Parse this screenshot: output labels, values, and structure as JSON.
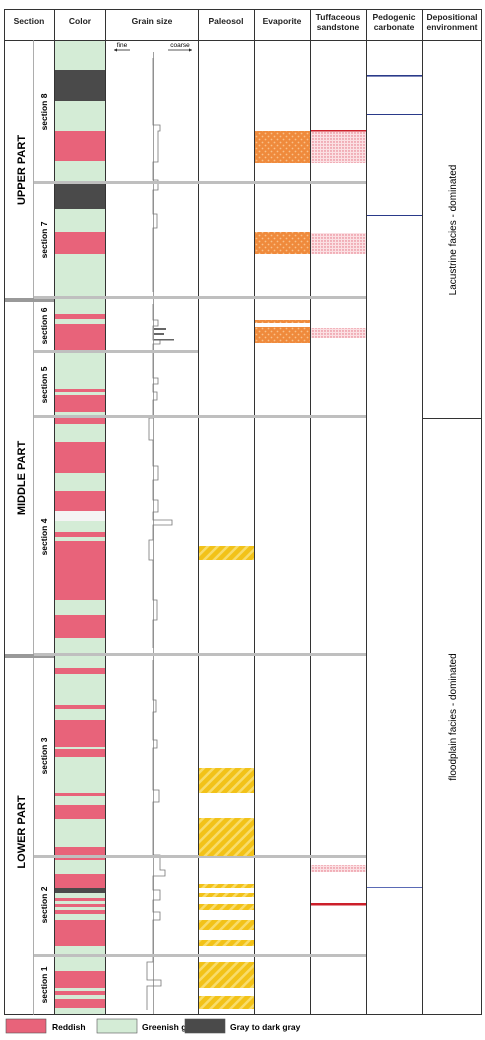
{
  "headers": {
    "section": "Section",
    "color": "Color",
    "grain_size": "Grain size",
    "paleosol": "Paleosol",
    "evaporite": "Evaporite",
    "tuffaceous_sandstone": [
      "Tuffaceous",
      "sandstone"
    ],
    "pedogenic_carbonate": [
      "Pedogenic",
      "carbonate"
    ],
    "depositional_environment": [
      "Depositional",
      "environment"
    ]
  },
  "grain_axis": {
    "fine": "fine",
    "coarse": "coarse"
  },
  "parts": [
    {
      "label": "UPPER PART"
    },
    {
      "label": "MIDDLE PART"
    },
    {
      "label": "LOWER PART"
    }
  ],
  "sections": [
    {
      "label": "section 8"
    },
    {
      "label": "section 7"
    },
    {
      "label": "section 6"
    },
    {
      "label": "section 5"
    },
    {
      "label": "section 4"
    },
    {
      "label": "section 3"
    },
    {
      "label": "section 2"
    },
    {
      "label": "section 1"
    }
  ],
  "environments": [
    {
      "label": "Lacustrine facies - dominated"
    },
    {
      "label": "floodplain facies - dominated"
    }
  ],
  "legend": [
    {
      "label": "Reddish",
      "color": "#e8637a"
    },
    {
      "label": "Greenish gray",
      "color": "#d4ecd6"
    },
    {
      "label": "Gray to dark gray",
      "color": "#4a4a4a"
    }
  ],
  "colors": {
    "reddish": "#e8637a",
    "greenish_gray": "#d4ecd6",
    "dark_gray": "#4a4a4a",
    "paleosol": "#f2c218",
    "evaporite": "#ef8a3c",
    "tuff": "#f4a7b0",
    "tuff_line": "#cc1f2a",
    "carbonate_line": "#2a3a8a"
  }
}
